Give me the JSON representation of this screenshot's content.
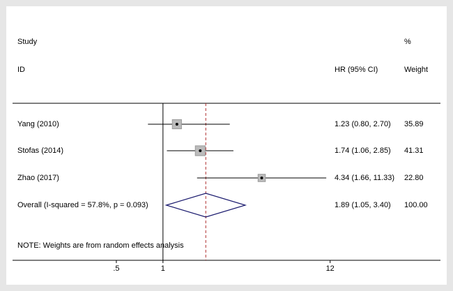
{
  "chart_data": {
    "type": "forest",
    "headers": {
      "study": "Study",
      "id": "ID",
      "hr": "HR (95% CI)",
      "pct": "%",
      "weight": "Weight"
    },
    "rows": [
      {
        "label": "Yang   (2010)",
        "hr": 1.23,
        "ci": [
          0.8,
          2.7
        ],
        "ci_label": "1.23 (0.80, 2.70)",
        "weight": 35.89,
        "weight_label": "35.89"
      },
      {
        "label": "Stofas   (2014)",
        "hr": 1.74,
        "ci": [
          1.06,
          2.85
        ],
        "ci_label": "1.74 (1.06, 2.85)",
        "weight": 41.31,
        "weight_label": "41.31"
      },
      {
        "label": "Zhao (2017)",
        "hr": 4.34,
        "ci": [
          1.66,
          11.33
        ],
        "ci_label": "4.34 (1.66, 11.33)",
        "weight": 22.8,
        "weight_label": "22.80"
      }
    ],
    "overall": {
      "label": "Overall  (I-squared = 57.8%, p = 0.093)",
      "hr": 1.89,
      "ci": [
        1.05,
        3.4
      ],
      "ci_label": "1.89 (1.05, 3.40)",
      "weight": 100,
      "weight_label": "100.00"
    },
    "note": "NOTE: Weights are from random effects analysis",
    "log_scale": true,
    "null_line": 1,
    "xlim": [
      0.2,
      20
    ],
    "xticks": [
      {
        "value": 0.5,
        "label": ".5"
      },
      1,
      12
    ],
    "diamond_color": "#1a1a6e",
    "overall_line_color": "#b03030"
  }
}
